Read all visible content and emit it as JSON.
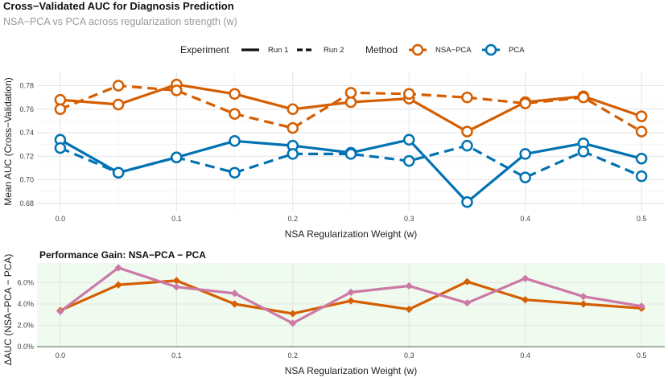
{
  "chart_data": [
    {
      "type": "line",
      "title": "Cross−Validated AUC for Diagnosis Prediction",
      "subtitle": "NSA−PCA vs PCA across regularization strength (w)",
      "xlabel": "NSA Regularization Weight (w)",
      "ylabel": "Mean AUC (Cross−Validation)",
      "xlim": [
        -0.02,
        0.52
      ],
      "ylim": [
        0.673,
        0.792
      ],
      "x_ticks": [
        0.0,
        0.1,
        0.2,
        0.3,
        0.4,
        0.5
      ],
      "x_tick_labels": [
        "0.0",
        "0.1",
        "0.2",
        "0.3",
        "0.4",
        "0.5"
      ],
      "y_ticks": [
        0.68,
        0.7,
        0.72,
        0.74,
        0.76,
        0.78
      ],
      "y_tick_labels": [
        "0.68",
        "0.70",
        "0.72",
        "0.74",
        "0.76",
        "0.78"
      ],
      "legend": {
        "experiment_title": "Experiment",
        "experiment_items": [
          "Run 1",
          "Run 2"
        ],
        "method_title": "Method",
        "method_items": [
          "NSA−PCA",
          "PCA"
        ],
        "position": "top"
      },
      "x": [
        0.0,
        0.05,
        0.1,
        0.15,
        0.2,
        0.25,
        0.3,
        0.35,
        0.4,
        0.45,
        0.5
      ],
      "series": [
        {
          "name": "NSA−PCA Run 1",
          "method": "NSA−PCA",
          "run": "Run 1",
          "color": "#d55e00",
          "values": [
            0.768,
            0.764,
            0.781,
            0.773,
            0.76,
            0.766,
            0.769,
            0.741,
            0.766,
            0.771,
            0.754
          ]
        },
        {
          "name": "NSA−PCA Run 2",
          "method": "NSA−PCA",
          "run": "Run 2",
          "color": "#d55e00",
          "values": [
            0.76,
            0.78,
            0.776,
            0.756,
            0.744,
            0.774,
            0.773,
            0.77,
            0.765,
            0.77,
            0.741
          ]
        },
        {
          "name": "PCA Run 1",
          "method": "PCA",
          "run": "Run 1",
          "color": "#0072b2",
          "values": [
            0.734,
            0.706,
            0.719,
            0.733,
            0.729,
            0.723,
            0.734,
            0.681,
            0.722,
            0.731,
            0.718
          ]
        },
        {
          "name": "PCA Run 2",
          "method": "PCA",
          "run": "Run 2",
          "color": "#0072b2",
          "values": [
            0.727,
            0.706,
            0.719,
            0.706,
            0.722,
            0.722,
            0.716,
            0.729,
            0.702,
            0.724,
            0.703
          ]
        }
      ]
    },
    {
      "type": "line",
      "title": "Performance Gain: NSA−PCA − PCA",
      "xlabel": "NSA Regularization Weight (w)",
      "ylabel": "ΔAUC (NSA−PCA − PCA)",
      "xlim": [
        -0.02,
        0.52
      ],
      "ylim": [
        -0.0015,
        0.0785
      ],
      "x_ticks": [
        0.0,
        0.1,
        0.2,
        0.3,
        0.4,
        0.5
      ],
      "x_tick_labels": [
        "0.0",
        "0.1",
        "0.2",
        "0.3",
        "0.4",
        "0.5"
      ],
      "y_ticks": [
        0.0,
        0.02,
        0.04,
        0.06
      ],
      "y_tick_labels": [
        "0.0%",
        "2.0%",
        "4.0%",
        "6.0%"
      ],
      "background": "#effbef",
      "x": [
        0.0,
        0.05,
        0.1,
        0.15,
        0.2,
        0.25,
        0.3,
        0.35,
        0.4,
        0.45,
        0.5
      ],
      "series": [
        {
          "name": "Run 1",
          "color": "#d55e00",
          "values": [
            0.034,
            0.058,
            0.062,
            0.04,
            0.031,
            0.043,
            0.035,
            0.061,
            0.044,
            0.04,
            0.036
          ]
        },
        {
          "name": "Run 2",
          "color": "#cc79a7",
          "values": [
            0.033,
            0.074,
            0.056,
            0.05,
            0.022,
            0.051,
            0.057,
            0.041,
            0.064,
            0.047,
            0.038
          ]
        }
      ]
    }
  ]
}
